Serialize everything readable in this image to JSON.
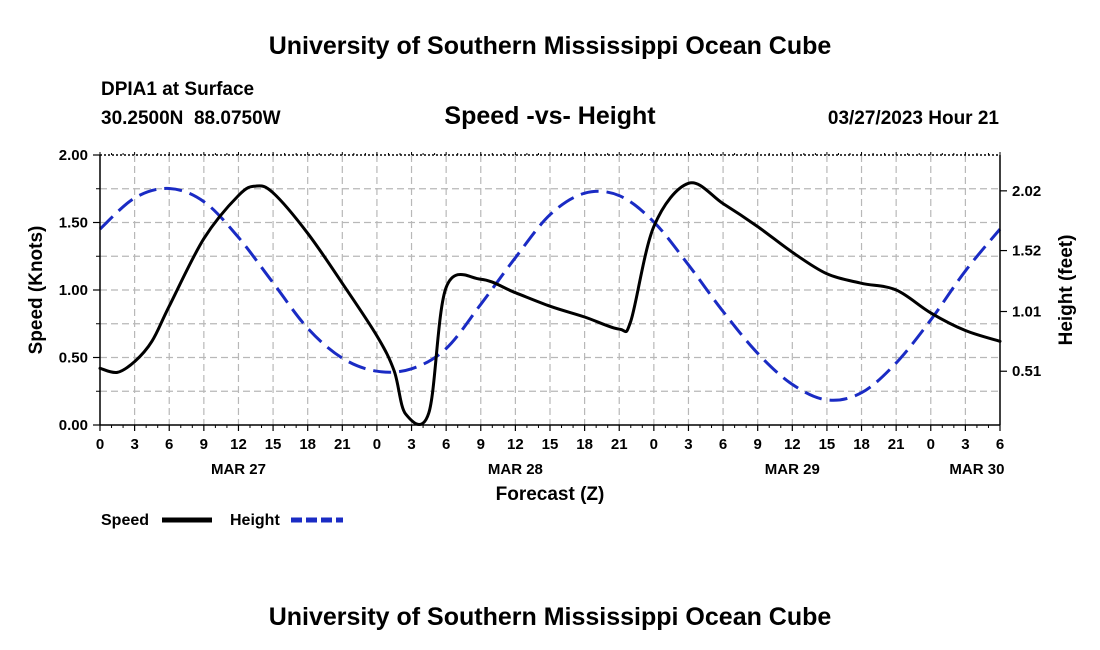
{
  "page": {
    "top_title": "University of Southern Mississippi Ocean Cube",
    "bottom_title": "University of Southern Mississippi Ocean Cube",
    "station": "DPIA1 at Surface",
    "coords": "30.2500N  88.0750W",
    "datetime": "03/27/2023 Hour 21"
  },
  "chart_data": {
    "type": "line",
    "title": "Speed -vs- Height",
    "xlabel": "Forecast (Z)",
    "ylabel": "Speed (Knots)",
    "y2label": "Height (feet)",
    "x_unit": "hours since 2023-03-27 00Z",
    "xlim": [
      0,
      78
    ],
    "ylim": [
      0,
      2.0
    ],
    "y2lim": [
      0.06,
      2.32
    ],
    "grid": true,
    "legend_position": "bottom-left",
    "x_tick_values": [
      0,
      3,
      6,
      9,
      12,
      15,
      18,
      21,
      24,
      27,
      30,
      33,
      36,
      39,
      42,
      45,
      48,
      51,
      54,
      57,
      60,
      63,
      66,
      69,
      72,
      75,
      78
    ],
    "x_tick_labels": [
      "0",
      "3",
      "6",
      "9",
      "12",
      "15",
      "18",
      "21",
      "0",
      "3",
      "6",
      "9",
      "12",
      "15",
      "18",
      "21",
      "0",
      "3",
      "6",
      "9",
      "12",
      "15",
      "18",
      "21",
      "0",
      "3",
      "6"
    ],
    "date_labels": [
      {
        "x": 12,
        "label": "MAR 27"
      },
      {
        "x": 36,
        "label": "MAR 28"
      },
      {
        "x": 60,
        "label": "MAR 29"
      },
      {
        "x": 76,
        "label": "MAR 30"
      }
    ],
    "y_ticks": [
      {
        "value": 0.0,
        "label": "0.00"
      },
      {
        "value": 0.5,
        "label": "0.50"
      },
      {
        "value": 1.0,
        "label": "1.00"
      },
      {
        "value": 1.5,
        "label": "1.50"
      },
      {
        "value": 2.0,
        "label": "2.00"
      }
    ],
    "y2_ticks": [
      {
        "value": 0.51,
        "label": "0.51"
      },
      {
        "value": 1.01,
        "label": "1.01"
      },
      {
        "value": 1.52,
        "label": "1.52"
      },
      {
        "value": 2.02,
        "label": "2.02"
      }
    ],
    "series": [
      {
        "name": "Speed",
        "axis": "left",
        "color": "#000000",
        "dash": false,
        "x": [
          0,
          1.5,
          3,
          4.5,
          6,
          9,
          12,
          13.5,
          15,
          18,
          21,
          24,
          25.5,
          26.5,
          28.5,
          30,
          33,
          36,
          39,
          42,
          45,
          46,
          48,
          51,
          54,
          57,
          60,
          63,
          66,
          69,
          72,
          75,
          78
        ],
        "y": [
          0.42,
          0.39,
          0.47,
          0.62,
          0.88,
          1.38,
          1.7,
          1.77,
          1.72,
          1.42,
          1.05,
          0.66,
          0.4,
          0.08,
          0.09,
          1.02,
          1.08,
          0.98,
          0.88,
          0.8,
          0.71,
          0.77,
          1.47,
          1.79,
          1.64,
          1.47,
          1.28,
          1.12,
          1.05,
          1.0,
          0.83,
          0.7,
          0.62
        ]
      },
      {
        "name": "Height",
        "axis": "right",
        "color": "#1a2bc4",
        "dash": true,
        "x": [
          0,
          3,
          6,
          9,
          12,
          15,
          18,
          21,
          24,
          27,
          30,
          33,
          36,
          39,
          42,
          45,
          48,
          51,
          54,
          57,
          60,
          63,
          66,
          69,
          72,
          75,
          78
        ],
        "y": [
          1.7,
          1.96,
          2.04,
          1.93,
          1.63,
          1.25,
          0.87,
          0.62,
          0.51,
          0.53,
          0.7,
          1.07,
          1.46,
          1.82,
          2.0,
          1.98,
          1.76,
          1.4,
          1.01,
          0.66,
          0.4,
          0.27,
          0.33,
          0.58,
          0.94,
          1.35,
          1.7
        ]
      }
    ]
  }
}
